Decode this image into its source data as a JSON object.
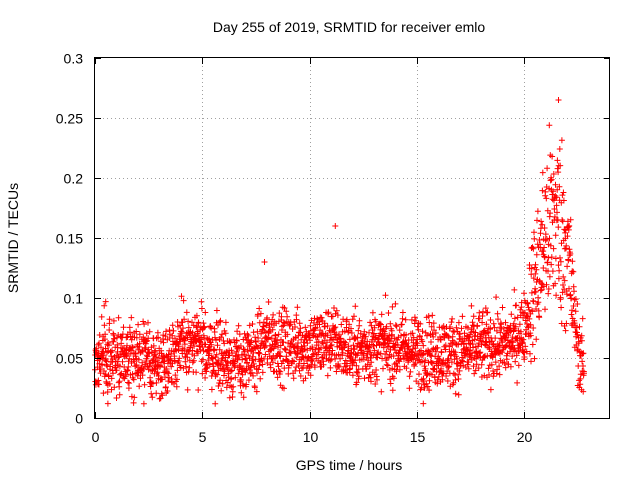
{
  "chart_data": {
    "type": "scatter",
    "title": "Day 255 of 2019, SRMTID for receiver emlo",
    "xlabel": "GPS time / hours",
    "ylabel": "SRMTID / TECUs",
    "xlim": [
      0,
      24
    ],
    "ylim": [
      0,
      0.3
    ],
    "xticks": [
      0,
      5,
      10,
      15,
      20
    ],
    "xtick_labels": [
      "0",
      "5",
      "10",
      "15",
      "20"
    ],
    "yticks": [
      0,
      0.05,
      0.1,
      0.15,
      0.2,
      0.25,
      0.3
    ],
    "ytick_labels": [
      "0",
      "0.05",
      "0.1",
      "0.15",
      "0.2",
      "0.25",
      "0.3"
    ],
    "grid": true,
    "marker": "+",
    "series": [
      {
        "name": "SRMTID",
        "color": "#ff0000",
        "x_range": [
          0,
          22.8
        ],
        "sample_interval_hours": 0.01,
        "mean_profile": [
          [
            0,
            0.05
          ],
          [
            1,
            0.05
          ],
          [
            2,
            0.05
          ],
          [
            3,
            0.045
          ],
          [
            4,
            0.06
          ],
          [
            5,
            0.06
          ],
          [
            6,
            0.05
          ],
          [
            7,
            0.045
          ],
          [
            8,
            0.065
          ],
          [
            9,
            0.06
          ],
          [
            10,
            0.06
          ],
          [
            11,
            0.065
          ],
          [
            12,
            0.055
          ],
          [
            13,
            0.06
          ],
          [
            14,
            0.06
          ],
          [
            15,
            0.055
          ],
          [
            16,
            0.055
          ],
          [
            17,
            0.055
          ],
          [
            18,
            0.06
          ],
          [
            19,
            0.06
          ],
          [
            19.5,
            0.065
          ],
          [
            20,
            0.075
          ],
          [
            20.5,
            0.11
          ],
          [
            21,
            0.15
          ],
          [
            21.5,
            0.17
          ],
          [
            22,
            0.14
          ],
          [
            22.3,
            0.09
          ],
          [
            22.6,
            0.05
          ],
          [
            22.8,
            0.04
          ]
        ],
        "notable_points": [
          {
            "x": 0.5,
            "y": 0.097
          },
          {
            "x": 7.9,
            "y": 0.13
          },
          {
            "x": 11.2,
            "y": 0.16
          },
          {
            "x": 21.6,
            "y": 0.265
          },
          {
            "x": 15.3,
            "y": 0.012
          },
          {
            "x": 0.6,
            "y": 0.012
          }
        ]
      }
    ]
  }
}
